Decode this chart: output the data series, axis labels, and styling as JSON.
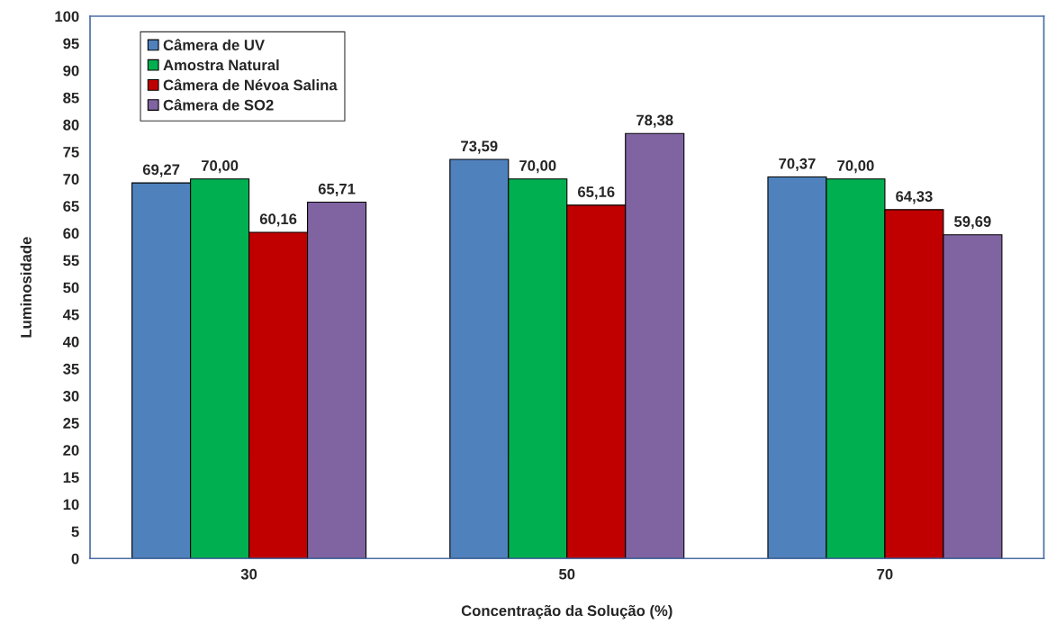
{
  "chart_data": {
    "type": "bar",
    "xlabel": "Concentração da Solução (%)",
    "ylabel": "Luminosidade",
    "categories": [
      "30",
      "50",
      "70"
    ],
    "series": [
      {
        "name": "Câmera de UV",
        "color": "#4f81bd",
        "values": [
          69.27,
          73.59,
          70.37
        ],
        "value_labels": [
          "69,27",
          "73,59",
          "70,37"
        ]
      },
      {
        "name": "Amostra Natural",
        "color": "#00b050",
        "values": [
          70.0,
          70.0,
          70.0
        ],
        "value_labels": [
          "70,00",
          "70,00",
          "70,00"
        ]
      },
      {
        "name": "Câmera de Névoa Salina",
        "color": "#c00000",
        "values": [
          60.16,
          65.16,
          64.33
        ],
        "value_labels": [
          "60,16",
          "65,16",
          "64,33"
        ]
      },
      {
        "name": "Câmera de SO2",
        "color": "#8064a2",
        "values": [
          65.71,
          78.38,
          59.69
        ],
        "value_labels": [
          "65,71",
          "78,38",
          "59,69"
        ]
      }
    ],
    "ylim": [
      0,
      100
    ],
    "yticks": [
      0,
      5,
      10,
      15,
      20,
      25,
      30,
      35,
      40,
      45,
      50,
      55,
      60,
      65,
      70,
      75,
      80,
      85,
      90,
      95,
      100
    ],
    "grid": false,
    "legend": "top left"
  }
}
